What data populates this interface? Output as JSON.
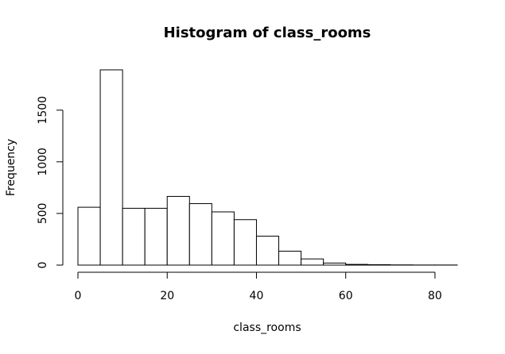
{
  "chart_data": {
    "type": "bar",
    "title": "Histogram of class_rooms",
    "xlabel": "class_rooms",
    "ylabel": "Frequency",
    "bins": [
      {
        "start": 0,
        "end": 5,
        "value": 560
      },
      {
        "start": 5,
        "end": 10,
        "value": 1890
      },
      {
        "start": 10,
        "end": 15,
        "value": 550
      },
      {
        "start": 15,
        "end": 20,
        "value": 550
      },
      {
        "start": 20,
        "end": 25,
        "value": 665
      },
      {
        "start": 25,
        "end": 30,
        "value": 595
      },
      {
        "start": 30,
        "end": 35,
        "value": 515
      },
      {
        "start": 35,
        "end": 40,
        "value": 440
      },
      {
        "start": 40,
        "end": 45,
        "value": 280
      },
      {
        "start": 45,
        "end": 50,
        "value": 135
      },
      {
        "start": 50,
        "end": 55,
        "value": 60
      },
      {
        "start": 55,
        "end": 60,
        "value": 20
      },
      {
        "start": 60,
        "end": 65,
        "value": 7
      },
      {
        "start": 65,
        "end": 70,
        "value": 4
      },
      {
        "start": 70,
        "end": 75,
        "value": 2
      },
      {
        "start": 75,
        "end": 80,
        "value": 1
      },
      {
        "start": 80,
        "end": 85,
        "value": 1
      }
    ],
    "xticks": [
      0,
      20,
      40,
      60,
      80
    ],
    "yticks": [
      0,
      500,
      1000,
      1500
    ],
    "xlim": [
      0,
      85
    ],
    "ylim": [
      0,
      1890
    ],
    "grid": false,
    "colors": {
      "bar_fill": "#ffffff",
      "bar_stroke": "#000000"
    }
  }
}
